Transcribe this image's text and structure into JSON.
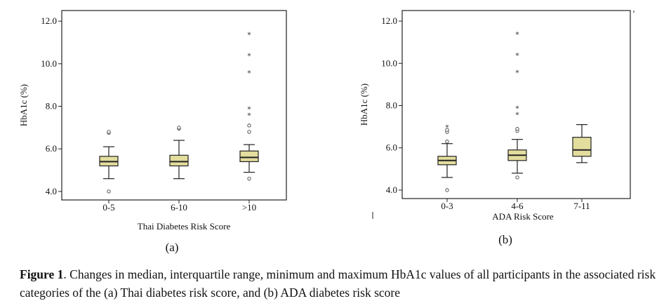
{
  "colors": {
    "box_fill": "#e3dd9e",
    "stroke": "#222222",
    "background": "#ffffff"
  },
  "chart_data": [
    {
      "type": "box",
      "panel_label": "(a)",
      "xlabel": "Thai Diabetes Risk Score",
      "ylabel": "HbA1c (%)",
      "ylim": [
        3.6,
        12.5
      ],
      "yticks": [
        4.0,
        6.0,
        8.0,
        10.0,
        12.0
      ],
      "ytick_labels": [
        "4.0",
        "6.0",
        "8.0",
        "10.0",
        "12.0"
      ],
      "categories": [
        "0-5",
        "6-10",
        ">10"
      ],
      "boxes": [
        {
          "category": "0-5",
          "whisker_low": 4.6,
          "q1": 5.2,
          "median": 5.4,
          "q3": 5.65,
          "whisker_high": 6.1,
          "outliers": [
            4.0,
            6.75,
            6.8
          ],
          "extremes": []
        },
        {
          "category": "6-10",
          "whisker_low": 4.6,
          "q1": 5.2,
          "median": 5.4,
          "q3": 5.7,
          "whisker_high": 6.4,
          "outliers": [
            6.95,
            7.0
          ],
          "extremes": []
        },
        {
          "category": ">10",
          "whisker_low": 4.9,
          "q1": 5.4,
          "median": 5.6,
          "q3": 5.9,
          "whisker_high": 6.2,
          "outliers": [
            4.6,
            6.8,
            7.1
          ],
          "extremes": [
            7.6,
            7.9,
            9.6,
            10.4,
            11.4
          ]
        }
      ]
    },
    {
      "type": "box",
      "panel_label": "(b)",
      "xlabel": "ADA Risk Score",
      "ylabel": "HbA1c (%)",
      "ylim": [
        3.6,
        12.5
      ],
      "yticks": [
        4.0,
        6.0,
        8.0,
        10.0,
        12.0
      ],
      "ytick_labels": [
        "4.0",
        "6.0",
        "8.0",
        "10.0",
        "12.0"
      ],
      "categories": [
        "0-3",
        "4-6",
        "7-11"
      ],
      "boxes": [
        {
          "category": "0-3",
          "whisker_low": 4.6,
          "q1": 5.2,
          "median": 5.4,
          "q3": 5.6,
          "whisker_high": 6.2,
          "outliers": [
            4.0,
            6.3,
            6.75,
            6.85
          ],
          "extremes": [
            7.0
          ]
        },
        {
          "category": "4-6",
          "whisker_low": 4.8,
          "q1": 5.4,
          "median": 5.65,
          "q3": 5.9,
          "whisker_high": 6.4,
          "outliers": [
            4.6,
            6.8,
            6.9
          ],
          "extremes": [
            7.6,
            7.9,
            9.6,
            10.4,
            11.4
          ]
        },
        {
          "category": "7-11",
          "whisker_low": 5.3,
          "q1": 5.6,
          "median": 5.9,
          "q3": 6.5,
          "whisker_high": 7.1,
          "outliers": [],
          "extremes": []
        }
      ]
    }
  ],
  "caption": {
    "label": "Figure 1",
    "text": ". Changes in median, interquartile range, minimum and maximum HbA1c values of all participants in the associated risk categories of the (a) Thai diabetes risk score, and (b) ADA diabetes risk score"
  }
}
